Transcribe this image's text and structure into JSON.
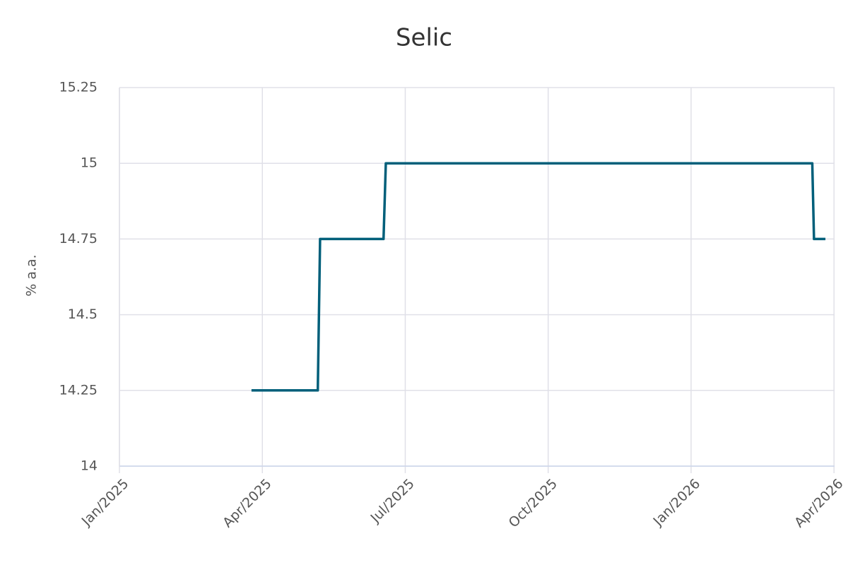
{
  "chart_data": {
    "type": "line",
    "title": "Selic",
    "y_label": "% a.a.",
    "x": [
      2025.231,
      2025.347,
      2025.351,
      2025.462,
      2025.466,
      2026.212,
      2026.215,
      2026.235
    ],
    "values": [
      14.25,
      14.25,
      14.75,
      14.75,
      15,
      15,
      14.75,
      14.75
    ],
    "color": "#005f7a",
    "xlim": [
      2025,
      2026.251
    ],
    "xticks": [
      {
        "value": 2025,
        "label": "Jan/2025"
      },
      {
        "value": 2025.25,
        "label": "Apr/2025"
      },
      {
        "value": 2025.5,
        "label": "Jul/2025"
      },
      {
        "value": 2025.75,
        "label": "Oct/2025"
      },
      {
        "value": 2026,
        "label": "Jan/2026"
      },
      {
        "value": 2026.25,
        "label": "Apr/2026"
      }
    ],
    "ylim": [
      14,
      15.25
    ],
    "yticks": [
      14,
      14.25,
      14.5,
      14.75,
      15,
      15.25
    ],
    "grid": true
  }
}
